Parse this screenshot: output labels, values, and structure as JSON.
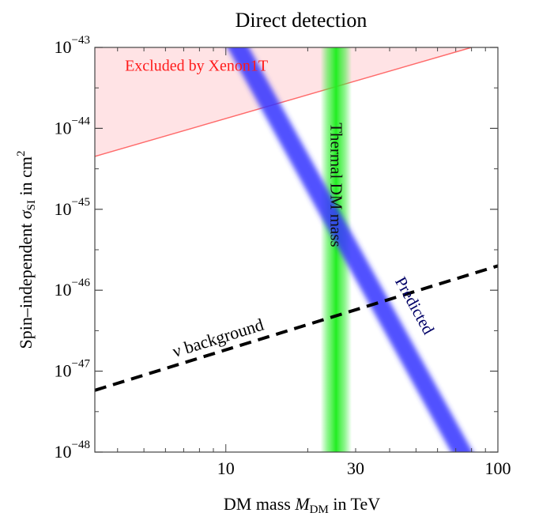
{
  "chart_data": {
    "type": "line",
    "title": "Direct detection",
    "xlabel": {
      "prefix": "DM mass ",
      "symbol": "M",
      "sub": "DM",
      "suffix": " in TeV"
    },
    "ylabel": {
      "prefix": "Spin–independent ",
      "symbol": "σ",
      "sub": "SI",
      "suffix": " in cm",
      "sup": "2"
    },
    "xscale": "log",
    "yscale": "log",
    "xlim": [
      3.3,
      100
    ],
    "ylim": [
      1e-48,
      1e-43
    ],
    "x_ticks": [
      {
        "value": 10,
        "label": "10"
      },
      {
        "value": 30,
        "label": "30"
      },
      {
        "value": 100,
        "label": "100"
      }
    ],
    "y_ticks": [
      {
        "value": 1e-48,
        "base": "10",
        "exp": "−48"
      },
      {
        "value": 1e-47,
        "base": "10",
        "exp": "−47"
      },
      {
        "value": 1e-46,
        "base": "10",
        "exp": "−46"
      },
      {
        "value": 1e-45,
        "base": "10",
        "exp": "−45"
      },
      {
        "value": 1e-44,
        "base": "10",
        "exp": "−44"
      },
      {
        "value": 1e-43,
        "base": "10",
        "exp": "−43"
      }
    ],
    "series": [
      {
        "name": "Excluded by Xenon1T",
        "kind": "shaded-region-above-line",
        "color": "#ff6b6b",
        "fill": "#ffe3e5",
        "x": [
          3.3,
          80
        ],
        "y": [
          4.5e-45,
          1e-43
        ],
        "label_at": {
          "x": 7.8,
          "y": 6e-44
        }
      },
      {
        "name": "ν background",
        "kind": "dashed-line",
        "color": "#000000",
        "x": [
          3.3,
          100
        ],
        "y": [
          5.8e-48,
          2e-46
        ],
        "label_at": {
          "x": 9.5,
          "y": 2.2e-47
        }
      },
      {
        "name": "Thermal DM mass",
        "kind": "vertical-band",
        "color": "#22ee22",
        "x_range": [
          23.5,
          27.5
        ],
        "label_at": {
          "x": 25.5,
          "y": 2e-45
        }
      },
      {
        "name": "Predicted",
        "kind": "thick-band",
        "color": "#3333ff",
        "x": [
          10.5,
          78
        ],
        "y": [
          1e-43,
          1e-48
        ],
        "label_at": {
          "x": 45,
          "y": 6e-47
        }
      }
    ]
  }
}
